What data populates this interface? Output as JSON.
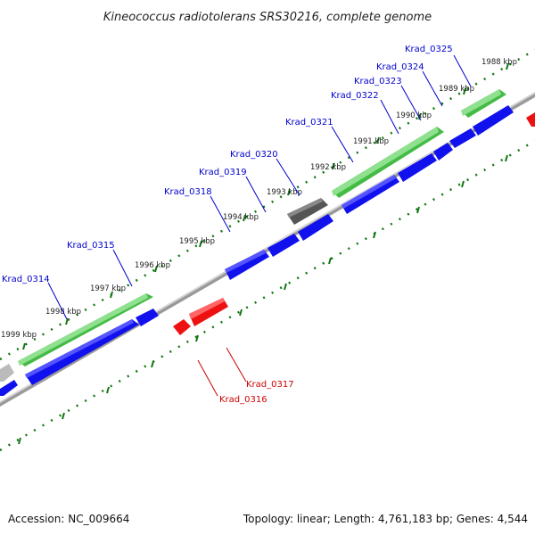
{
  "title": "Kineococcus radiotolerans SRS30216, complete genome",
  "footer": {
    "accession": "Accession: NC_009664",
    "topology": "Topology: linear; Length: 4,761,183 bp; Genes: 4,544"
  },
  "tick_labels": [
    "1988 kbp",
    "1989 kbp",
    "1990 kbp",
    "1991 kbp",
    "1992 kbp",
    "1993 kbp",
    "1994 kbp",
    "1995 kbp",
    "1996 kbp",
    "1997 kbp",
    "1998 kbp",
    "1999 kbp"
  ],
  "genes": [
    {
      "label": "Krad_0325",
      "color": "#0000cc"
    },
    {
      "label": "Krad_0324",
      "color": "#0000cc"
    },
    {
      "label": "Krad_0323",
      "color": "#0000cc"
    },
    {
      "label": "Krad_0322",
      "color": "#0000cc"
    },
    {
      "label": "Krad_0321",
      "color": "#0000cc"
    },
    {
      "label": "Krad_0320",
      "color": "#0000cc"
    },
    {
      "label": "Krad_0319",
      "color": "#0000cc"
    },
    {
      "label": "Krad_0318",
      "color": "#0000cc"
    },
    {
      "label": "Krad_0315",
      "color": "#0000cc"
    },
    {
      "label": "Krad_0314",
      "color": "#0000cc"
    },
    {
      "label": "Krad_0317",
      "color": "#cc0000"
    },
    {
      "label": "Krad_0316",
      "color": "#cc0000"
    }
  ],
  "colors": {
    "forward_gene": "#0000ee",
    "reverse_gene": "#ee0000",
    "rna_gene": "#33cc33",
    "pseudo_gene": "#555555",
    "backbone": "#888888",
    "tick_marks": "#117711"
  }
}
